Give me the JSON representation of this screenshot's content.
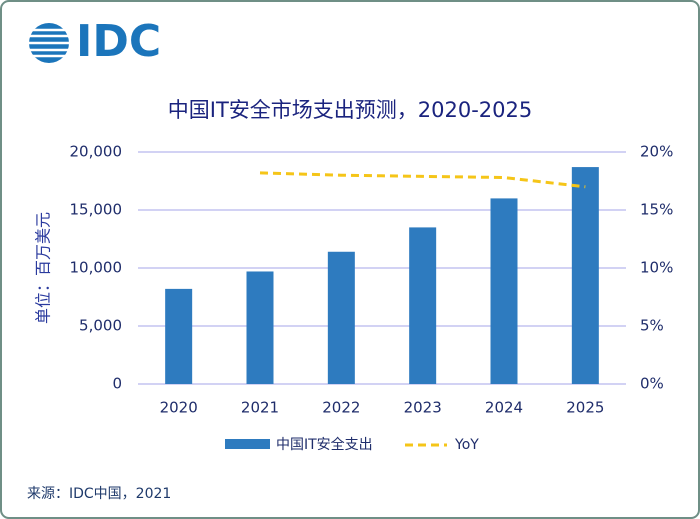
{
  "logo": "IDC",
  "chart_data": {
    "type": "bar",
    "title": "中国IT安全市场支出预测，2020-2025",
    "y_label": "单位：百万美元",
    "categories": [
      "2020",
      "2021",
      "2022",
      "2023",
      "2024",
      "2025"
    ],
    "series": [
      {
        "name": "中国IT安全支出",
        "type": "bar",
        "color": "#2e7bbf",
        "values": [
          8200,
          9700,
          11400,
          13500,
          16000,
          18700
        ]
      },
      {
        "name": "YoY",
        "type": "line",
        "axis": "y2",
        "dashed": true,
        "color": "#f5c518",
        "values": [
          null,
          18.2,
          18.0,
          17.9,
          17.8,
          17.0
        ]
      }
    ],
    "ylim": [
      0,
      20000
    ],
    "yticks": [
      0,
      {
        "value": 5000,
        "label": "5,000"
      },
      {
        "value": 10000,
        "label": "10,000"
      },
      {
        "value": 15000,
        "label": "15,000"
      },
      {
        "value": 20000,
        "label": "20,000"
      }
    ],
    "y2lim": [
      0,
      20
    ],
    "y2ticks": [
      {
        "value": 0,
        "label": "0%"
      },
      {
        "value": 5,
        "label": "5%"
      },
      {
        "value": 10,
        "label": "10%"
      },
      {
        "value": 15,
        "label": "15%"
      },
      {
        "value": 20,
        "label": "20%"
      }
    ],
    "grid": true,
    "legend": "bottom"
  },
  "source": "来源：IDC中国，2021"
}
